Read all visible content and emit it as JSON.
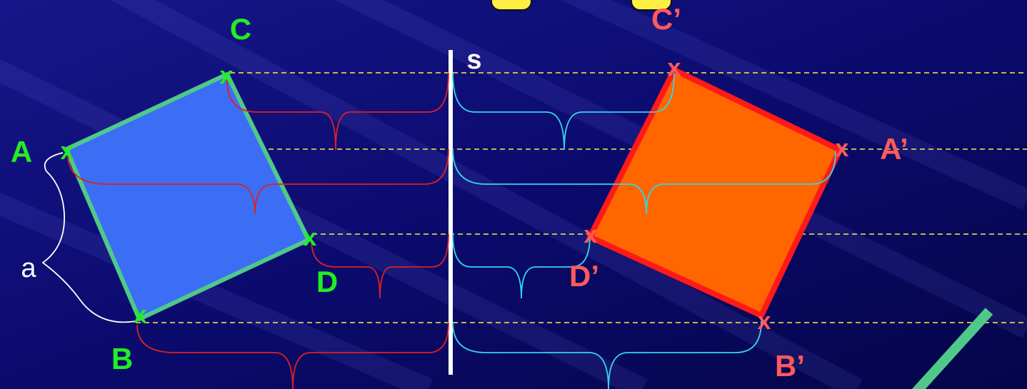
{
  "labels": {
    "A": "A",
    "B": "B",
    "C": "C",
    "D": "D",
    "A_prime": "A’",
    "B_prime": "B’",
    "C_prime": "C’",
    "D_prime": "D’",
    "axis": "s",
    "side": "a",
    "mark": "x"
  },
  "colors": {
    "background": "#0a0a6a",
    "original_fill": "#3b6ef5",
    "original_stroke": "#4fc98a",
    "image_fill": "#ff6600",
    "image_stroke": "#ff1a1a",
    "guide": "#ffee44",
    "brace_left": "#e02020",
    "brace_right": "#33d6e6",
    "green_label": "#22ee22",
    "red_label": "#ff5a5a",
    "white": "#ffffff"
  },
  "icons": {
    "decoration": "green-stripe-icon",
    "top_decoration": "yellow-rounded-shapes-icon"
  }
}
